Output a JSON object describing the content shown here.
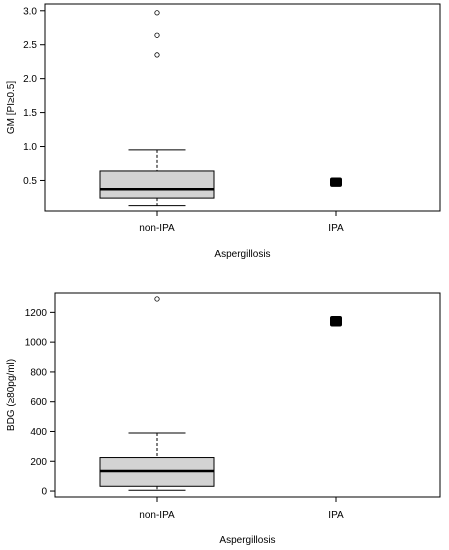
{
  "chart_data": [
    {
      "type": "box",
      "xlabel": "Aspergillosis",
      "ylabel": "GM [PI≥0.5]",
      "ylim": [
        0.05,
        3.1
      ],
      "yticks": [
        0.5,
        1.0,
        1.5,
        2.0,
        2.5,
        3.0
      ],
      "ytick_labels": [
        "0.5",
        "1.0",
        "1.5",
        "2.0",
        "2.5",
        "3.0"
      ],
      "categories": [
        "non-IPA",
        "IPA"
      ],
      "boxes": [
        {
          "category": "non-IPA",
          "whisker_low": 0.13,
          "q1": 0.24,
          "median": 0.37,
          "q3": 0.64,
          "whisker_high": 0.95,
          "outliers": [
            2.35,
            2.64,
            2.97
          ]
        },
        {
          "category": "IPA",
          "whisker_low": 0.45,
          "q1": 0.45,
          "median": 0.47,
          "q3": 0.5,
          "whisker_high": 0.5,
          "outliers": []
        }
      ],
      "colors": {
        "box_fill": "#d3d3d3",
        "line": "#000000"
      }
    },
    {
      "type": "box",
      "xlabel": "Aspergillosis",
      "ylabel": "BDG (≥80pg/ml)",
      "ylim": [
        -40,
        1330
      ],
      "yticks": [
        0,
        200,
        400,
        600,
        800,
        1000,
        1200
      ],
      "ytick_labels": [
        "0",
        "200",
        "400",
        "600",
        "800",
        "1000",
        "1200"
      ],
      "categories": [
        "non-IPA",
        "IPA"
      ],
      "boxes": [
        {
          "category": "non-IPA",
          "whisker_low": 5,
          "q1": 32,
          "median": 135,
          "q3": 225,
          "whisker_high": 390,
          "outliers": [
            1290
          ]
        },
        {
          "category": "IPA",
          "whisker_low": 1125,
          "q1": 1125,
          "median": 1140,
          "q3": 1155,
          "whisker_high": 1155,
          "outliers": []
        }
      ],
      "colors": {
        "box_fill": "#d3d3d3",
        "line": "#000000"
      }
    }
  ]
}
